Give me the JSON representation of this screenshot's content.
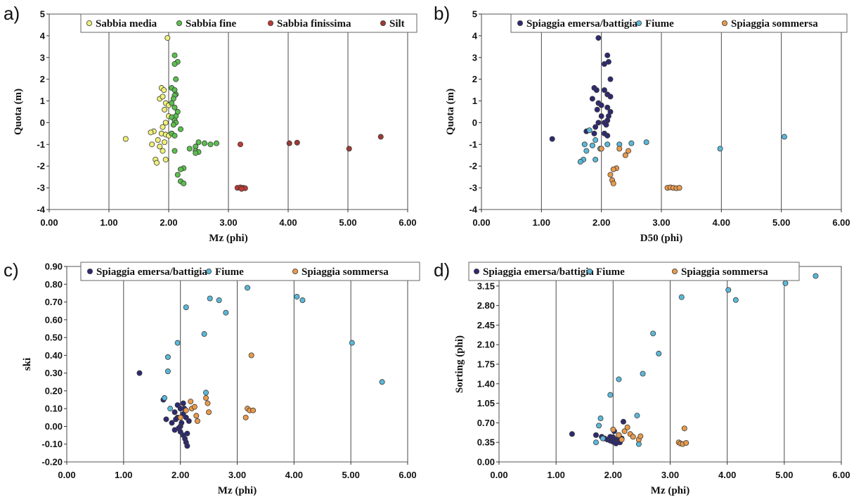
{
  "chart_data": [
    {
      "panel": "a)",
      "type": "scatter",
      "xlabel": "Mz (phi)",
      "ylabel": "Quota (m)",
      "xlim": [
        0,
        6
      ],
      "ylim": [
        -4,
        5
      ],
      "xticks": [
        "0.00",
        "1.00",
        "2.00",
        "3.00",
        "4.00",
        "5.00",
        "6.00"
      ],
      "yticks": [
        "-4",
        "-3",
        "-2",
        "-1",
        "0",
        "1",
        "2",
        "3",
        "4",
        "5"
      ],
      "grid": "vertical",
      "legend": "top",
      "series": [
        {
          "name": "Sabbia media",
          "color": "#eef07a",
          "points": [
            [
              1.98,
              3.9
            ],
            [
              1.88,
              1.6
            ],
            [
              1.92,
              1.5
            ],
            [
              1.85,
              1.1
            ],
            [
              1.9,
              1.2
            ],
            [
              1.95,
              0.9
            ],
            [
              2.0,
              0.8
            ],
            [
              1.93,
              0.6
            ],
            [
              2.0,
              0.3
            ],
            [
              1.95,
              0.0
            ],
            [
              1.9,
              -0.2
            ],
            [
              1.75,
              -0.4
            ],
            [
              1.7,
              -0.45
            ],
            [
              1.88,
              -0.5
            ],
            [
              1.95,
              -0.55
            ],
            [
              2.0,
              -0.6
            ],
            [
              1.28,
              -0.75
            ],
            [
              1.82,
              -0.8
            ],
            [
              1.93,
              -0.9
            ],
            [
              1.72,
              -1.0
            ],
            [
              1.85,
              -1.1
            ],
            [
              1.9,
              -1.3
            ],
            [
              1.78,
              -1.7
            ],
            [
              1.95,
              -1.7
            ],
            [
              1.8,
              -1.85
            ]
          ]
        },
        {
          "name": "Sabbia fine",
          "color": "#5bbf4e",
          "points": [
            [
              2.1,
              3.1
            ],
            [
              2.15,
              2.8
            ],
            [
              2.1,
              2.7
            ],
            [
              2.12,
              2.0
            ],
            [
              2.05,
              1.6
            ],
            [
              2.1,
              1.5
            ],
            [
              2.12,
              1.3
            ],
            [
              2.1,
              1.25
            ],
            [
              2.08,
              1.1
            ],
            [
              2.05,
              0.9
            ],
            [
              2.1,
              0.7
            ],
            [
              2.15,
              0.5
            ],
            [
              2.12,
              0.3
            ],
            [
              2.05,
              0.25
            ],
            [
              2.1,
              0.1
            ],
            [
              2.12,
              0.0
            ],
            [
              2.08,
              -0.1
            ],
            [
              2.2,
              -0.3
            ],
            [
              2.05,
              -0.5
            ],
            [
              2.1,
              -0.6
            ],
            [
              2.5,
              -0.9
            ],
            [
              2.6,
              -0.95
            ],
            [
              2.8,
              -0.95
            ],
            [
              2.7,
              -1.0
            ],
            [
              2.45,
              -1.1
            ],
            [
              2.35,
              -1.2
            ],
            [
              2.45,
              -1.3
            ],
            [
              2.1,
              -1.3
            ],
            [
              2.5,
              -1.35
            ],
            [
              2.45,
              -1.4
            ],
            [
              2.25,
              -2.1
            ],
            [
              2.2,
              -2.15
            ],
            [
              2.15,
              -2.4
            ],
            [
              2.2,
              -2.7
            ],
            [
              2.25,
              -2.8
            ]
          ]
        },
        {
          "name": "Sabbia finissima",
          "color": "#c03a35",
          "points": [
            [
              3.2,
              -1.0
            ],
            [
              3.15,
              -3.0
            ],
            [
              3.2,
              -2.98
            ],
            [
              3.25,
              -3.0
            ],
            [
              3.28,
              -3.02
            ],
            [
              3.22,
              -3.05
            ]
          ]
        },
        {
          "name": "Silt",
          "color": "#9c3b33",
          "points": [
            [
              4.02,
              -0.95
            ],
            [
              4.15,
              -0.92
            ],
            [
              5.02,
              -1.2
            ],
            [
              5.55,
              -0.65
            ]
          ]
        }
      ]
    },
    {
      "panel": "b)",
      "type": "scatter",
      "xlabel": "D50 (phi)",
      "ylabel": "Quota (m)",
      "xlim": [
        0,
        6
      ],
      "ylim": [
        -4,
        5
      ],
      "xticks": [
        "0.00",
        "1.00",
        "2.00",
        "3.00",
        "4.00",
        "5.00",
        "6.00"
      ],
      "yticks": [
        "-4",
        "-3",
        "-2",
        "-1",
        "0",
        "1",
        "2",
        "3",
        "4",
        "5"
      ],
      "grid": "vertical",
      "legend": "top",
      "series": [
        {
          "name": "Spiaggia emersa/battigia",
          "color": "#2e2a70",
          "points": [
            [
              1.95,
              3.9
            ],
            [
              2.1,
              3.1
            ],
            [
              2.12,
              2.8
            ],
            [
              2.05,
              2.7
            ],
            [
              2.15,
              2.0
            ],
            [
              1.88,
              1.6
            ],
            [
              1.92,
              1.5
            ],
            [
              2.05,
              1.5
            ],
            [
              2.1,
              1.3
            ],
            [
              1.85,
              1.1
            ],
            [
              2.15,
              1.2
            ],
            [
              1.95,
              0.9
            ],
            [
              2.0,
              0.8
            ],
            [
              2.1,
              0.7
            ],
            [
              1.93,
              0.6
            ],
            [
              2.15,
              0.5
            ],
            [
              2.0,
              0.3
            ],
            [
              2.12,
              0.3
            ],
            [
              1.95,
              0.0
            ],
            [
              2.1,
              0.1
            ],
            [
              2.05,
              0.0
            ],
            [
              1.9,
              -0.2
            ],
            [
              2.08,
              -0.1
            ],
            [
              1.75,
              -0.4
            ],
            [
              1.88,
              -0.5
            ],
            [
              2.05,
              -0.5
            ],
            [
              2.1,
              -0.6
            ],
            [
              1.18,
              -0.75
            ]
          ]
        },
        {
          "name": "Fiume",
          "color": "#5bb8d8",
          "points": [
            [
              1.8,
              -0.35
            ],
            [
              1.9,
              -0.8
            ],
            [
              1.72,
              -1.0
            ],
            [
              1.85,
              -1.05
            ],
            [
              2.1,
              -1.0
            ],
            [
              2.3,
              -1.0
            ],
            [
              2.5,
              -0.95
            ],
            [
              2.75,
              -0.9
            ],
            [
              1.98,
              -1.2
            ],
            [
              1.75,
              -1.3
            ],
            [
              1.7,
              -1.7
            ],
            [
              1.9,
              -1.7
            ],
            [
              1.65,
              -1.8
            ],
            [
              3.98,
              -1.2
            ],
            [
              5.05,
              -0.65
            ]
          ]
        },
        {
          "name": "Spiaggia sommersa",
          "color": "#e89a4c",
          "points": [
            [
              2.0,
              -1.2
            ],
            [
              2.3,
              -1.2
            ],
            [
              2.45,
              -1.3
            ],
            [
              2.4,
              -1.5
            ],
            [
              2.25,
              -2.1
            ],
            [
              2.2,
              -2.15
            ],
            [
              2.15,
              -2.4
            ],
            [
              2.18,
              -2.65
            ],
            [
              2.2,
              -2.8
            ],
            [
              3.1,
              -3.0
            ],
            [
              3.15,
              -2.98
            ],
            [
              3.2,
              -3.0
            ],
            [
              3.25,
              -3.02
            ],
            [
              3.3,
              -3.0
            ]
          ]
        }
      ]
    },
    {
      "panel": "c)",
      "type": "scatter",
      "xlabel": "Mz (phi)",
      "ylabel": "ski",
      "xlim": [
        0,
        6
      ],
      "ylim": [
        -0.2,
        0.9
      ],
      "xticks": [
        "0.00",
        "1.00",
        "2.00",
        "3.00",
        "4.00",
        "5.00",
        "6.00"
      ],
      "yticks": [
        "-0.20",
        "-0.10",
        "0.00",
        "0.10",
        "0.20",
        "0.30",
        "0.40",
        "0.50",
        "0.60",
        "0.70",
        "0.80",
        "0.90"
      ],
      "grid": "vertical",
      "legend": "top",
      "series": [
        {
          "name": "Spiaggia emersa/battigia",
          "color": "#2e2a70",
          "points": [
            [
              1.28,
              0.3
            ],
            [
              1.7,
              0.15
            ],
            [
              1.75,
              0.04
            ],
            [
              1.85,
              0.02
            ],
            [
              1.9,
              0.08
            ],
            [
              1.95,
              0.12
            ],
            [
              2.0,
              0.1
            ],
            [
              1.95,
              0.05
            ],
            [
              2.05,
              0.07
            ],
            [
              2.0,
              0.0
            ],
            [
              1.9,
              -0.02
            ],
            [
              2.0,
              -0.03
            ],
            [
              2.05,
              -0.05
            ],
            [
              2.08,
              -0.07
            ],
            [
              2.1,
              -0.09
            ],
            [
              2.12,
              -0.11
            ],
            [
              2.05,
              0.13
            ],
            [
              2.1,
              0.05
            ],
            [
              2.15,
              0.03
            ],
            [
              2.02,
              0.02
            ],
            [
              1.97,
              -0.01
            ],
            [
              2.07,
              0.1
            ],
            [
              1.92,
              0.04
            ],
            [
              2.12,
              -0.04
            ]
          ]
        },
        {
          "name": "Fiume",
          "color": "#5bb8d8",
          "points": [
            [
              1.72,
              0.16
            ],
            [
              1.78,
              0.31
            ],
            [
              1.78,
              0.39
            ],
            [
              1.95,
              0.47
            ],
            [
              2.1,
              0.67
            ],
            [
              2.42,
              0.52
            ],
            [
              2.45,
              0.19
            ],
            [
              2.52,
              0.72
            ],
            [
              2.68,
              0.71
            ],
            [
              2.8,
              0.64
            ],
            [
              3.18,
              0.78
            ],
            [
              4.05,
              0.73
            ],
            [
              4.15,
              0.71
            ],
            [
              5.02,
              0.47
            ],
            [
              5.55,
              0.25
            ],
            [
              1.82,
              0.1
            ]
          ]
        },
        {
          "name": "Spiaggia sommersa",
          "color": "#e89a4c",
          "points": [
            [
              2.0,
              0.05
            ],
            [
              2.1,
              0.09
            ],
            [
              2.18,
              0.14
            ],
            [
              2.2,
              0.1
            ],
            [
              2.25,
              0.11
            ],
            [
              2.28,
              0.06
            ],
            [
              2.3,
              0.03
            ],
            [
              2.45,
              0.16
            ],
            [
              2.48,
              0.13
            ],
            [
              2.5,
              0.08
            ],
            [
              3.15,
              0.05
            ],
            [
              3.18,
              0.1
            ],
            [
              3.22,
              0.09
            ],
            [
              3.25,
              0.4
            ],
            [
              3.28,
              0.09
            ]
          ]
        }
      ]
    },
    {
      "panel": "d)",
      "type": "scatter",
      "xlabel": "Mz (phi)",
      "ylabel": "Sorting (phi)",
      "xlim": [
        0,
        6
      ],
      "ylim": [
        0,
        3.5
      ],
      "xticks": [
        "0.00",
        "1.00",
        "2.00",
        "3.00",
        "4.00",
        "5.00",
        "6.00"
      ],
      "yticks": [
        "0.00",
        "0.35",
        "0.70",
        "1.05",
        "1.40",
        "1.75",
        "2.10",
        "2.45",
        "2.80",
        "3.15"
      ],
      "grid": "vertical",
      "legend": "top",
      "series": [
        {
          "name": "Spiaggia emersa/battigia",
          "color": "#2e2a70",
          "points": [
            [
              1.28,
              0.5
            ],
            [
              1.7,
              0.48
            ],
            [
              1.8,
              0.45
            ],
            [
              1.85,
              0.42
            ],
            [
              1.9,
              0.4
            ],
            [
              1.95,
              0.38
            ],
            [
              2.0,
              0.44
            ],
            [
              2.02,
              0.55
            ],
            [
              2.05,
              0.4
            ],
            [
              2.08,
              0.36
            ],
            [
              2.1,
              0.38
            ],
            [
              2.12,
              0.35
            ],
            [
              2.15,
              0.42
            ],
            [
              2.18,
              0.72
            ],
            [
              2.0,
              0.36
            ],
            [
              1.95,
              0.45
            ],
            [
              2.1,
              0.48
            ],
            [
              2.05,
              0.33
            ]
          ]
        },
        {
          "name": "Fiume",
          "color": "#5bb8d8",
          "points": [
            [
              1.7,
              0.35
            ],
            [
              1.75,
              0.65
            ],
            [
              1.78,
              0.78
            ],
            [
              1.82,
              0.42
            ],
            [
              1.95,
              1.2
            ],
            [
              2.1,
              1.48
            ],
            [
              2.42,
              0.83
            ],
            [
              2.45,
              0.32
            ],
            [
              2.52,
              1.58
            ],
            [
              2.7,
              2.3
            ],
            [
              2.8,
              1.94
            ],
            [
              3.2,
              2.95
            ],
            [
              4.02,
              3.08
            ],
            [
              4.15,
              2.9
            ],
            [
              5.02,
              3.2
            ],
            [
              5.55,
              3.33
            ]
          ]
        },
        {
          "name": "Spiaggia sommersa",
          "color": "#e89a4c",
          "points": [
            [
              2.0,
              0.58
            ],
            [
              2.1,
              0.48
            ],
            [
              2.15,
              0.4
            ],
            [
              2.2,
              0.55
            ],
            [
              2.25,
              0.62
            ],
            [
              2.3,
              0.5
            ],
            [
              2.35,
              0.45
            ],
            [
              2.45,
              0.4
            ],
            [
              2.48,
              0.46
            ],
            [
              3.15,
              0.35
            ],
            [
              3.18,
              0.33
            ],
            [
              3.22,
              0.32
            ],
            [
              3.25,
              0.6
            ],
            [
              3.28,
              0.34
            ]
          ]
        }
      ]
    }
  ]
}
